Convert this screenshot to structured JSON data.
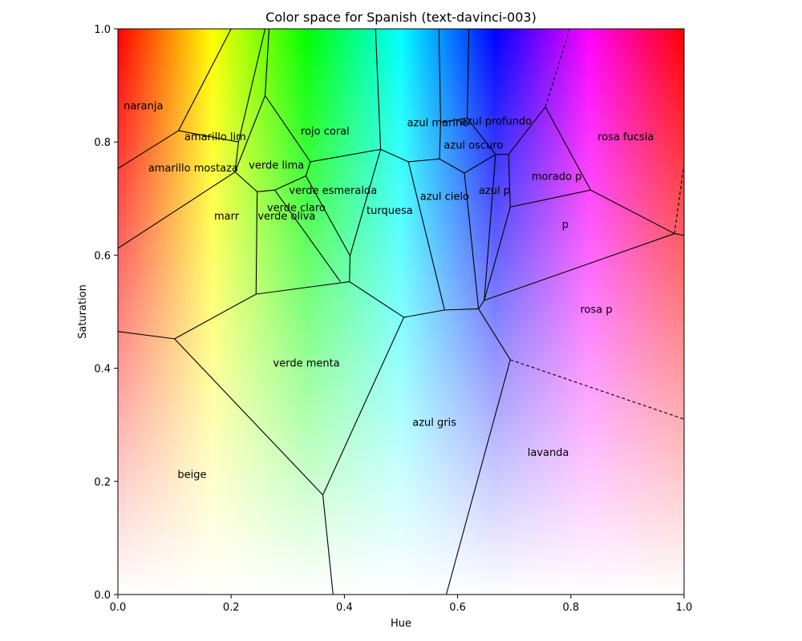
{
  "chart_data": {
    "type": "voronoi",
    "title": "Color space for Spanish (text-davinci-003)",
    "xlabel": "Hue",
    "ylabel": "Saturation",
    "xlim": [
      0.0,
      1.0
    ],
    "ylim": [
      0.0,
      1.0
    ],
    "x_ticks": [
      {
        "value": 0.0,
        "label": "0.0"
      },
      {
        "value": 0.2,
        "label": "0.2"
      },
      {
        "value": 0.4,
        "label": "0.4"
      },
      {
        "value": 0.6,
        "label": "0.6"
      },
      {
        "value": 0.8,
        "label": "0.8"
      },
      {
        "value": 1.0,
        "label": "1.0"
      }
    ],
    "y_ticks": [
      {
        "value": 0.0,
        "label": "0.0"
      },
      {
        "value": 0.2,
        "label": "0.2"
      },
      {
        "value": 0.4,
        "label": "0.4"
      },
      {
        "value": 0.6,
        "label": "0.6"
      },
      {
        "value": 0.8,
        "label": "0.8"
      },
      {
        "value": 1.0,
        "label": "1.0"
      }
    ],
    "background": "hue-saturation gradient (white at saturation 0, full hue at saturation 1)",
    "regions": [
      {
        "label": "naranja",
        "x": 0.045,
        "y": 0.865
      },
      {
        "label": "amarillo lim",
        "x": 0.172,
        "y": 0.81
      },
      {
        "label": "amarillo mostaza",
        "x": 0.133,
        "y": 0.755
      },
      {
        "label": "rojo coral",
        "x": 0.366,
        "y": 0.82
      },
      {
        "label": "verde lima",
        "x": 0.28,
        "y": 0.76
      },
      {
        "label": "verde esmeralda",
        "x": 0.38,
        "y": 0.715
      },
      {
        "label": "verde claro",
        "x": 0.315,
        "y": 0.685
      },
      {
        "label": "marr",
        "x": 0.192,
        "y": 0.67
      },
      {
        "label": "verde oliva",
        "x": 0.298,
        "y": 0.67
      },
      {
        "label": "turquesa",
        "x": 0.48,
        "y": 0.68
      },
      {
        "label": "azul marino",
        "x": 0.565,
        "y": 0.835
      },
      {
        "label": "azul profundo",
        "x": 0.668,
        "y": 0.838
      },
      {
        "label": "azul oscuro",
        "x": 0.628,
        "y": 0.795
      },
      {
        "label": "azul cielo",
        "x": 0.577,
        "y": 0.705
      },
      {
        "label": "azul p",
        "x": 0.665,
        "y": 0.715
      },
      {
        "label": "morado p",
        "x": 0.775,
        "y": 0.74
      },
      {
        "label": "rosa fucsia",
        "x": 0.897,
        "y": 0.81
      },
      {
        "label": "p",
        "x": 0.79,
        "y": 0.655
      },
      {
        "label": "rosa p",
        "x": 0.845,
        "y": 0.505
      },
      {
        "label": "verde menta",
        "x": 0.333,
        "y": 0.41
      },
      {
        "label": "azul gris",
        "x": 0.559,
        "y": 0.305
      },
      {
        "label": "lavanda",
        "x": 0.76,
        "y": 0.252
      },
      {
        "label": "beige",
        "x": 0.131,
        "y": 0.213
      }
    ],
    "edges": [
      [
        [
          0.0,
          0.753
        ],
        [
          0.107,
          0.82
        ]
      ],
      [
        [
          0.107,
          0.82
        ],
        [
          0.2,
          1.0
        ]
      ],
      [
        [
          0.107,
          0.82
        ],
        [
          0.213,
          0.8
        ]
      ],
      [
        [
          0.213,
          0.8
        ],
        [
          0.207,
          0.747
        ]
      ],
      [
        [
          0.213,
          0.8
        ],
        [
          0.26,
          1.0
        ]
      ],
      [
        [
          0.0,
          0.612
        ],
        [
          0.207,
          0.747
        ]
      ],
      [
        [
          0.207,
          0.747
        ],
        [
          0.26,
          0.882
        ]
      ],
      [
        [
          0.26,
          0.882
        ],
        [
          0.267,
          1.0
        ]
      ],
      [
        [
          0.26,
          0.882
        ],
        [
          0.34,
          0.765
        ]
      ],
      [
        [
          0.207,
          0.747
        ],
        [
          0.246,
          0.712
        ]
      ],
      [
        [
          0.246,
          0.712
        ],
        [
          0.277,
          0.715
        ]
      ],
      [
        [
          0.277,
          0.715
        ],
        [
          0.332,
          0.74
        ]
      ],
      [
        [
          0.332,
          0.74
        ],
        [
          0.34,
          0.765
        ]
      ],
      [
        [
          0.34,
          0.765
        ],
        [
          0.464,
          0.787
        ]
      ],
      [
        [
          0.464,
          0.787
        ],
        [
          0.455,
          1.0
        ]
      ],
      [
        [
          0.464,
          0.787
        ],
        [
          0.41,
          0.599
        ]
      ],
      [
        [
          0.332,
          0.74
        ],
        [
          0.41,
          0.599
        ]
      ],
      [
        [
          0.277,
          0.715
        ],
        [
          0.393,
          0.553
        ]
      ],
      [
        [
          0.41,
          0.599
        ],
        [
          0.409,
          0.553
        ]
      ],
      [
        [
          0.246,
          0.712
        ],
        [
          0.244,
          0.531
        ]
      ],
      [
        [
          0.244,
          0.531
        ],
        [
          0.409,
          0.553
        ]
      ],
      [
        [
          0.244,
          0.531
        ],
        [
          0.1,
          0.452
        ]
      ],
      [
        [
          0.0,
          0.465
        ],
        [
          0.1,
          0.452
        ]
      ],
      [
        [
          0.1,
          0.452
        ],
        [
          0.362,
          0.176
        ]
      ],
      [
        [
          0.362,
          0.176
        ],
        [
          0.38,
          0.0
        ]
      ],
      [
        [
          0.362,
          0.176
        ],
        [
          0.505,
          0.49
        ]
      ],
      [
        [
          0.409,
          0.553
        ],
        [
          0.505,
          0.49
        ]
      ],
      [
        [
          0.505,
          0.49
        ],
        [
          0.577,
          0.503
        ]
      ],
      [
        [
          0.464,
          0.787
        ],
        [
          0.513,
          0.765
        ]
      ],
      [
        [
          0.513,
          0.765
        ],
        [
          0.577,
          0.503
        ]
      ],
      [
        [
          0.513,
          0.765
        ],
        [
          0.568,
          0.77
        ]
      ],
      [
        [
          0.568,
          0.77
        ],
        [
          0.57,
          0.835
        ]
      ],
      [
        [
          0.57,
          0.835
        ],
        [
          0.567,
          1.0
        ]
      ],
      [
        [
          0.57,
          0.835
        ],
        [
          0.617,
          0.842
        ]
      ],
      [
        [
          0.617,
          0.842
        ],
        [
          0.62,
          1.0
        ]
      ],
      [
        [
          0.617,
          0.842
        ],
        [
          0.667,
          0.778
        ]
      ],
      [
        [
          0.568,
          0.77
        ],
        [
          0.612,
          0.745
        ]
      ],
      [
        [
          0.612,
          0.745
        ],
        [
          0.667,
          0.778
        ]
      ],
      [
        [
          0.612,
          0.745
        ],
        [
          0.637,
          0.505
        ]
      ],
      [
        [
          0.577,
          0.503
        ],
        [
          0.637,
          0.505
        ]
      ],
      [
        [
          0.637,
          0.505
        ],
        [
          0.647,
          0.52
        ]
      ],
      [
        [
          0.647,
          0.52
        ],
        [
          0.667,
          0.778
        ]
      ],
      [
        [
          0.667,
          0.778
        ],
        [
          0.69,
          0.778
        ]
      ],
      [
        [
          0.69,
          0.778
        ],
        [
          0.693,
          0.685
        ]
      ],
      [
        [
          0.69,
          0.778
        ],
        [
          0.755,
          0.862
        ]
      ],
      [
        [
          0.755,
          0.862
        ],
        [
          0.835,
          0.715
        ]
      ],
      [
        [
          0.835,
          0.715
        ],
        [
          0.693,
          0.685
        ]
      ],
      [
        [
          0.693,
          0.685
        ],
        [
          0.647,
          0.52
        ]
      ],
      [
        [
          0.835,
          0.715
        ],
        [
          0.983,
          0.638
        ]
      ],
      [
        [
          0.983,
          0.638
        ],
        [
          1.0,
          0.635
        ]
      ],
      [
        [
          0.983,
          0.638
        ],
        [
          0.647,
          0.52
        ]
      ],
      [
        [
          0.637,
          0.505
        ],
        [
          0.693,
          0.415
        ]
      ],
      [
        [
          0.693,
          0.415
        ],
        [
          0.58,
          0.0
        ]
      ]
    ],
    "dashed_edges": [
      [
        [
          0.755,
          0.862
        ],
        [
          0.798,
          1.0
        ]
      ],
      [
        [
          0.983,
          0.638
        ],
        [
          0.999,
          0.755
        ]
      ],
      [
        [
          0.693,
          0.415
        ],
        [
          1.0,
          0.31
        ]
      ]
    ]
  }
}
